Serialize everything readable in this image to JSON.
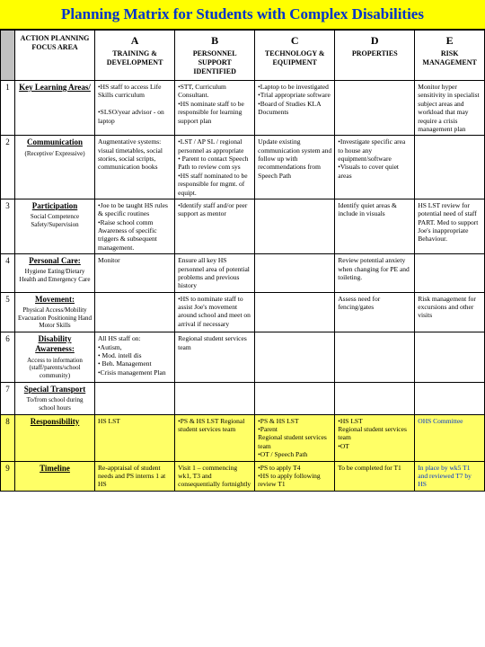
{
  "title": "Planning Matrix for Students with Complex Disabilities",
  "headers": {
    "focus": "ACTION PLANNING FOCUS AREA",
    "A": {
      "letter": "A",
      "text": "TRAINING & DEVELOPMENT"
    },
    "B": {
      "letter": "B",
      "text": "PERSONNEL SUPPORT IDENTIFIED"
    },
    "C": {
      "letter": "C",
      "text": "TECHNOLOGY & EQUIPMENT"
    },
    "D": {
      "letter": "D",
      "text": "PROPERTIES"
    },
    "E": {
      "letter": "E",
      "text": "RISK MANAGEMENT"
    }
  },
  "rows": [
    {
      "num": "1",
      "focus": {
        "label": "Key Learning Areas/",
        "sub": ""
      },
      "A": "•HS staff to access Life Skills curriculum\n\n•SLSO/year advisor - on laptop",
      "B": "•STT, Curriculum Consultant.\n•HS nominate staff to be responsible for learning support plan",
      "C": "•Laptop to be investigated\n•Trial appropriate software\n•Board of Studies KLA Documents",
      "D": "",
      "E": "Monitor hyper sensitivity in specialist subject areas and workload that may require a crisis management plan"
    },
    {
      "num": "2",
      "focus": {
        "label": "Communication",
        "sub": "(Receptive/ Expressive)"
      },
      "A": "Augmentative systems: visual timetables, social stories, social scripts, communication books",
      "B": "•LST / AP SL / regional personnel as appropriate\n• Parent to contact Speech Path to review com sys\n•HS staff nominated to be responsible for mgmt. of equipt.",
      "C": "Update existing communication system and follow up with recommendations from Speech Path",
      "D": "•Investigate specific area to house any equipment/software\n•Visuals to cover quiet areas",
      "E": ""
    },
    {
      "num": "3",
      "focus": {
        "label": "Participation",
        "sub": "Social Competence Safety/Supervision"
      },
      "A": "•Joe to be taught HS rules & specific routines\n•Raise school comm Awareness of specific triggers & subsequent management.",
      "B": "•Identify staff and/or peer support as mentor",
      "C": "",
      "D": "Identify quiet areas & include in visuals",
      "E": "HS LST review for potential need of staff PART. Med to support Joe's inappropriate Behaviour."
    },
    {
      "num": "4",
      "focus": {
        "label": "Personal Care:",
        "sub": "Hygiene Eating/Dietary Health and Emergency Care"
      },
      "A": "Monitor",
      "B": "Ensure all key HS personnel area of potential problems and previous history",
      "C": "",
      "D": "Review potential anxiety when changing for PE and toileting.",
      "E": ""
    },
    {
      "num": "5",
      "focus": {
        "label": "Movement:",
        "sub": "Physical Access/Mobility Evacuation Positioning Hand Motor Skills"
      },
      "A": "",
      "B": "•HS to nominate staff to assist Joe's movement around school and meet on arrival if necessary",
      "C": "",
      "D": "Assess need for fencing/gates",
      "E": "Risk management for excursions and other visits"
    },
    {
      "num": "6",
      "focus": {
        "label": "Disability Awareness:",
        "sub": "Access to information (staff/parents/school community)"
      },
      "A": "All HS staff on:\n•Autism,\n• Mod. intell dis\n• Beh. Management\n•Crisis management Plan",
      "B": "Regional student services team",
      "C": "",
      "D": "",
      "E": ""
    },
    {
      "num": "7",
      "focus": {
        "label": "Special Transport",
        "sub": "To/from school during school hours"
      },
      "A": "",
      "B": "",
      "C": "",
      "D": "",
      "E": ""
    },
    {
      "num": "8",
      "focus": {
        "label": "Responsibility",
        "sub": ""
      },
      "A": "HS LST",
      "B": "•PS & HS LST Regional student services team",
      "C": "•PS & HS LST\n•Parent\nRegional student services team\n•OT / Speech Path",
      "D": "•HS LST\nRegional student services team\n•OT",
      "E": "OHS Committee"
    },
    {
      "num": "9",
      "focus": {
        "label": "Timeline",
        "sub": ""
      },
      "A": "Re-appraisal of student needs and PS interns 1 at HS",
      "B": "Visit 1 – commencing wk1, T3 and consequentially fortnightly",
      "C": "•PS to apply T4\n•HS to apply following review T1",
      "D": "To be completed for T1",
      "E": "In place by wk5 T1 and reviewed T7 by HS"
    }
  ],
  "colors": {
    "title_bg": "#ffff00",
    "title_text": "#0033cc",
    "border": "#000000",
    "highlight_row_bg": "#ffff66"
  }
}
